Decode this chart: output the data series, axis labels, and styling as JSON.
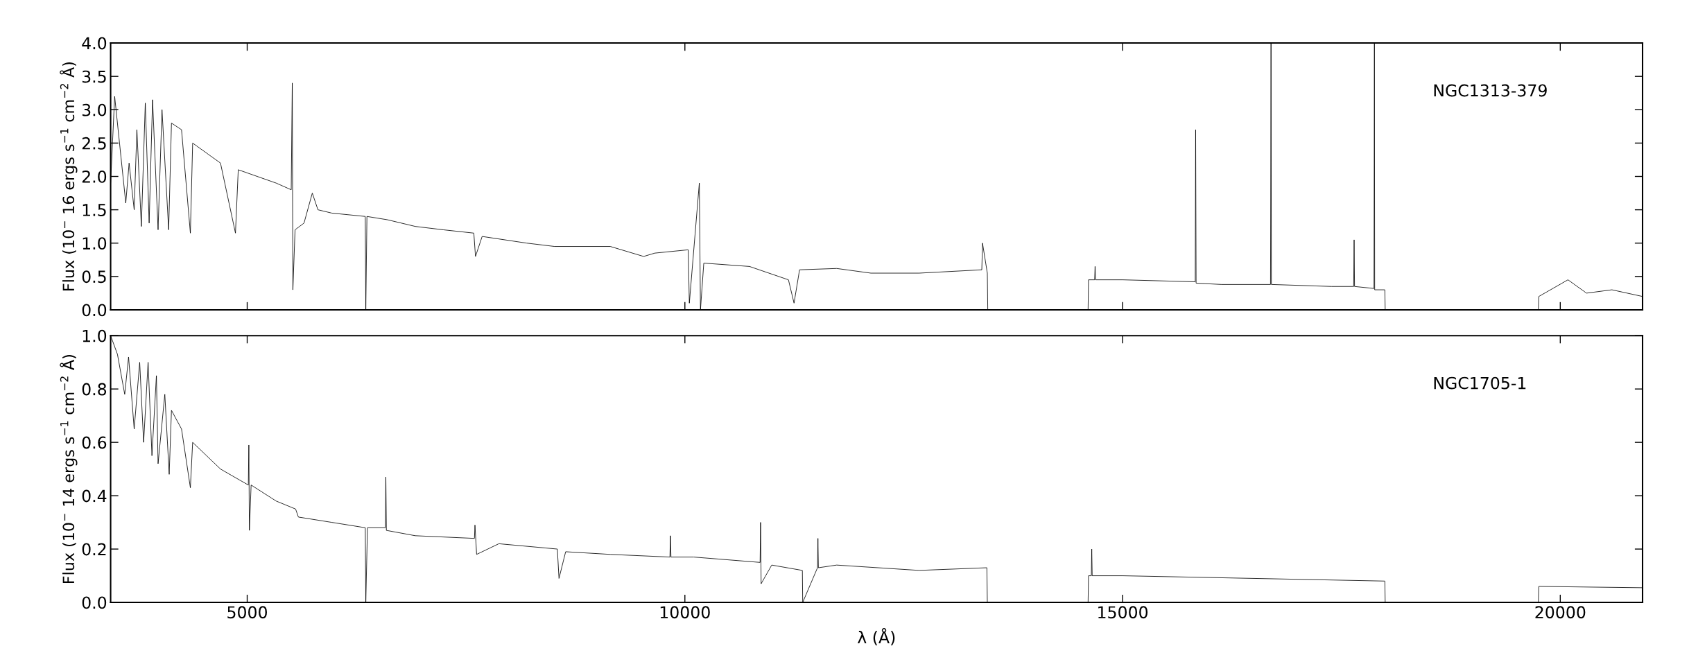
{
  "chart_data": [
    {
      "type": "line",
      "ylabel": "Flux (10$^{−}$ 16 ergs s$^{−1}$ cm$^{−2}$ Å)",
      "annotations": [
        "NGC1313-379"
      ],
      "tick_labels": "y",
      "grid": false,
      "marker": "none",
      "line_style": "solid",
      "xlim": [
        3440,
        20940
      ],
      "xticks": [
        5000,
        10000,
        15000,
        20000
      ],
      "ylim": [
        0,
        4.0
      ],
      "yticks": [
        {
          "value": 0,
          "label": "0.0"
        },
        {
          "value": 0.5,
          "label": "0.5"
        },
        {
          "value": 1,
          "label": "1.0"
        },
        {
          "value": 1.5,
          "label": "1.5"
        },
        {
          "value": 2,
          "label": "2.0"
        },
        {
          "value": 2.5,
          "label": "2.5"
        },
        {
          "value": 3,
          "label": "3.0"
        },
        {
          "value": 3.5,
          "label": "3.5"
        },
        {
          "value": 4,
          "label": "4.0"
        }
      ],
      "series": [
        {
          "color": "#000000",
          "x": [
            3440,
            3486,
            3613,
            3651,
            3709,
            3740,
            3791,
            3836,
            3880,
            3919,
            3982,
            4027,
            4103,
            4135,
            4250,
            4351,
            4377,
            4695,
            4866,
            4898,
            5331,
            5503,
            5515,
            5522,
            5547,
            5649,
            5744,
            5808,
            5967,
            6349,
            6355,
            6368,
            6603,
            6921,
            7239,
            7589,
            7608,
            7684,
            8193,
            8511,
            9148,
            9529,
            9656,
            10038,
            10051,
            10165,
            10178,
            10216,
            10738,
            11183,
            11247,
            11310,
            11734,
            12125,
            12676,
            13392,
            13400,
            13455,
            13460,
            14000,
            14606,
            14611,
            14681,
            14686,
            14691,
            15000,
            15830,
            15835,
            15840,
            16131,
            16690,
            16696,
            16700,
            17387,
            17640,
            17645,
            17650,
            17872,
            17877,
            17880,
            17996,
            18000,
            19000,
            19750,
            19755,
            20088,
            20300,
            20590,
            20940
          ],
          "values": [
            1.9,
            3.2,
            1.6,
            2.2,
            1.5,
            2.7,
            1.25,
            3.1,
            1.3,
            3.15,
            1.2,
            3.0,
            1.2,
            2.8,
            2.7,
            1.15,
            2.5,
            2.2,
            1.15,
            2.1,
            1.9,
            1.8,
            3.4,
            0.3,
            1.2,
            1.3,
            1.75,
            1.5,
            1.45,
            1.4,
            0.0,
            1.4,
            1.35,
            1.25,
            1.2,
            1.15,
            0.8,
            1.1,
            1.0,
            0.95,
            0.95,
            0.8,
            0.85,
            0.9,
            0.1,
            1.9,
            0.0,
            0.7,
            0.65,
            0.45,
            0.1,
            0.6,
            0.62,
            0.55,
            0.55,
            0.6,
            1.0,
            0.55,
            0.0,
            null,
            0.0,
            0.45,
            0.45,
            0.65,
            0.45,
            0.45,
            0.42,
            2.7,
            0.4,
            0.38,
            0.38,
            4.0,
            0.38,
            0.35,
            0.35,
            1.05,
            0.35,
            0.32,
            4.0,
            0.3,
            0.3,
            0.0,
            null,
            0.0,
            0.2,
            0.45,
            0.25,
            0.3,
            0.2
          ]
        }
      ]
    },
    {
      "type": "line",
      "ylabel": "Flux (10$^{−}$ 14 ergs s$^{−1}$ cm$^{−2}$ Å)",
      "xlabel": "λ (Å)",
      "annotations": [
        "NGC1705-1"
      ],
      "grid": false,
      "marker": "none",
      "line_style": "solid",
      "xlim": [
        3440,
        20940
      ],
      "xticks": [
        5000,
        10000,
        15000,
        20000
      ],
      "ylim": [
        0,
        1.0
      ],
      "yticks": [
        {
          "value": 0,
          "label": "0.0"
        },
        {
          "value": 0.2,
          "label": "0.2"
        },
        {
          "value": 0.4,
          "label": "0.4"
        },
        {
          "value": 0.6,
          "label": "0.6"
        },
        {
          "value": 0.8,
          "label": "0.8"
        },
        {
          "value": 1.0,
          "label": "1.0"
        }
      ],
      "series": [
        {
          "color": "#000000",
          "x": [
            3440,
            3518,
            3601,
            3645,
            3709,
            3772,
            3817,
            3868,
            3912,
            3963,
            3982,
            4059,
            4109,
            4135,
            4250,
            4351,
            4377,
            4695,
            5013,
            5019,
            5025,
            5045,
            5331,
            5553,
            5585,
            5967,
            6349,
            6355,
            6374,
            6578,
            6584,
            6590,
            6921,
            7596,
            7602,
            7621,
            7875,
            8543,
            8562,
            8638,
            9148,
            9829,
            9835,
            9841,
            10102,
            10859,
            10865,
            10871,
            10992,
            11342,
            11346,
            11515,
            11520,
            11525,
            11734,
            12676,
            13450,
            13455,
            13460,
            14000,
            14606,
            14611,
            14643,
            14648,
            14653,
            15000,
            17990,
            17996,
            18000,
            19000,
            19750,
            19755,
            20940
          ],
          "values": [
            1.0,
            0.93,
            0.78,
            0.92,
            0.65,
            0.9,
            0.6,
            0.9,
            0.55,
            0.85,
            0.52,
            0.78,
            0.48,
            0.72,
            0.65,
            0.43,
            0.6,
            0.5,
            0.44,
            0.59,
            0.27,
            0.44,
            0.38,
            0.35,
            0.32,
            0.3,
            0.28,
            0.0,
            0.28,
            0.28,
            0.47,
            0.27,
            0.25,
            0.24,
            0.29,
            0.18,
            0.22,
            0.2,
            0.09,
            0.19,
            0.18,
            0.17,
            0.25,
            0.17,
            0.17,
            0.15,
            0.3,
            0.07,
            0.14,
            0.12,
            0.0,
            0.13,
            0.24,
            0.13,
            0.14,
            0.12,
            0.13,
            0.0,
            0.0,
            null,
            0.0,
            0.1,
            0.1,
            0.2,
            0.1,
            0.1,
            0.08,
            0.08,
            0.0,
            null,
            0.0,
            0.06,
            0.055
          ]
        }
      ]
    }
  ]
}
